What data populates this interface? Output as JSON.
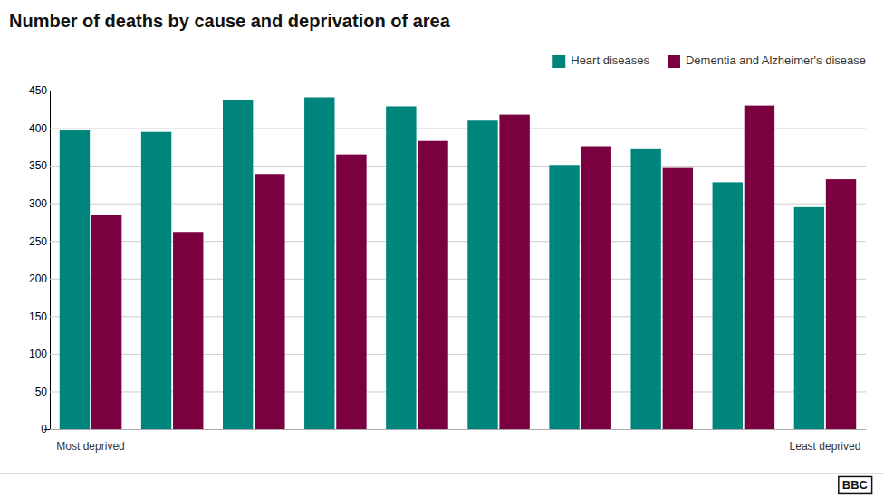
{
  "chart_data": {
    "type": "bar",
    "title": "Number of deaths by cause and deprivation of area",
    "categories": [
      "Most deprived",
      null,
      null,
      null,
      null,
      null,
      null,
      null,
      null,
      "Least deprived"
    ],
    "series": [
      {
        "name": "Heart diseases",
        "color": "#00857d",
        "values": [
          397,
          395,
          438,
          441,
          429,
          410,
          351,
          372,
          328,
          295
        ]
      },
      {
        "name": "Dementia and Alzheimer's disease",
        "color": "#7a0040",
        "values": [
          284,
          262,
          339,
          365,
          383,
          418,
          376,
          347,
          430,
          332
        ]
      }
    ],
    "ylim": [
      0,
      450
    ],
    "yticks": [
      0,
      50,
      100,
      150,
      200,
      250,
      300,
      350,
      400,
      450
    ],
    "grid": true,
    "legend": "upper right",
    "annotations": [
      "BBC"
    ]
  }
}
